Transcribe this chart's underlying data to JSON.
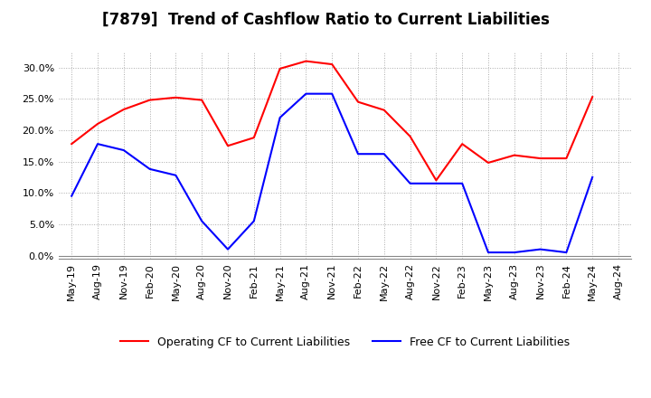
{
  "title": "[7879]  Trend of Cashflow Ratio to Current Liabilities",
  "x_labels": [
    "May-19",
    "Aug-19",
    "Nov-19",
    "Feb-20",
    "May-20",
    "Aug-20",
    "Nov-20",
    "Feb-21",
    "May-21",
    "Aug-21",
    "Nov-21",
    "Feb-22",
    "May-22",
    "Aug-22",
    "Nov-22",
    "Feb-23",
    "May-23",
    "Aug-23",
    "Nov-23",
    "Feb-24",
    "May-24",
    "Aug-24"
  ],
  "operating_cf": [
    0.178,
    0.21,
    0.233,
    0.248,
    0.252,
    0.248,
    0.175,
    0.188,
    0.298,
    0.31,
    0.305,
    0.245,
    0.232,
    0.19,
    0.12,
    0.178,
    0.148,
    0.16,
    0.155,
    0.155,
    0.253,
    null
  ],
  "free_cf": [
    0.095,
    0.178,
    0.168,
    0.138,
    0.128,
    0.055,
    0.01,
    0.055,
    0.22,
    0.258,
    0.258,
    0.162,
    0.162,
    0.115,
    0.115,
    0.115,
    0.005,
    0.005,
    0.01,
    0.005,
    0.125,
    null
  ],
  "operating_cf_color": "#FF0000",
  "free_cf_color": "#0000FF",
  "ylim": [
    -0.005,
    0.325
  ],
  "yticks": [
    0.0,
    0.05,
    0.1,
    0.15,
    0.2,
    0.25,
    0.3
  ],
  "legend_op": "Operating CF to Current Liabilities",
  "legend_free": "Free CF to Current Liabilities",
  "bg_color": "#FFFFFF",
  "plot_bg_color": "#FFFFFF",
  "grid_color": "#AAAAAA",
  "title_fontsize": 12,
  "tick_fontsize": 8,
  "legend_fontsize": 9
}
